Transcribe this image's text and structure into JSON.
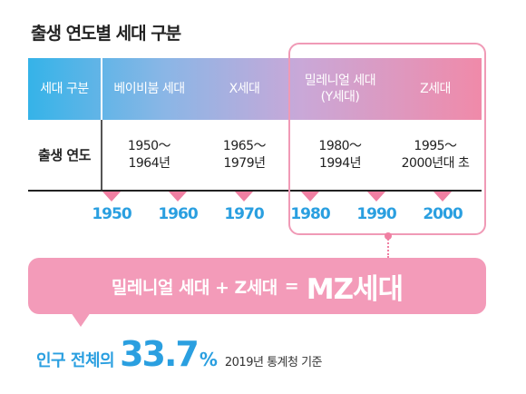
{
  "title": "출생 연도별 세대 구분",
  "header": {
    "row_label": "세대 구분",
    "generations": [
      {
        "label": "베이비붐 세대"
      },
      {
        "label": "X세대"
      },
      {
        "label": "밀레니얼 세대\n(Y세대)"
      },
      {
        "label": "Z세대"
      }
    ]
  },
  "birth_row": {
    "row_label": "출생 연도",
    "ranges": [
      "1950～\n1964년",
      "1965～\n1979년",
      "1980～\n1994년",
      "1995～\n2000년대 초"
    ]
  },
  "timeline": {
    "years": [
      "1950",
      "1960",
      "1970",
      "1980",
      "1990",
      "2000"
    ]
  },
  "banner": {
    "left_text": "밀레니얼 세대 + Z세대",
    "equals": "=",
    "result": "MZ세대"
  },
  "stat": {
    "label": "인구 전체의",
    "value": "33.7",
    "unit": "%",
    "note": "2019년 통계청 기준"
  },
  "colors": {
    "accent_blue": "#2a9fe0",
    "accent_pink": "#f07fa2",
    "banner_pink": "#f39bb9"
  }
}
